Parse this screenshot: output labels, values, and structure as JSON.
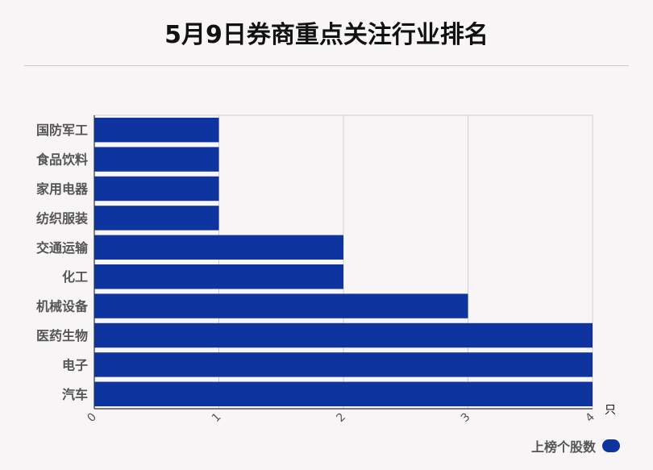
{
  "title": "5月9日券商重点关注行业排名",
  "chart_data": {
    "type": "bar",
    "orientation": "horizontal",
    "categories": [
      "国防军工",
      "食品饮料",
      "家用电器",
      "纺织服装",
      "交通运输",
      "化工",
      "机械设备",
      "医药生物",
      "电子",
      "汽车"
    ],
    "series": [
      {
        "name": "上榜个股数",
        "values": [
          1,
          1,
          1,
          1,
          2,
          2,
          3,
          4,
          4,
          4
        ]
      }
    ],
    "xlim": [
      0,
      4
    ],
    "xticks": [
      "0",
      "1",
      "2",
      "3",
      "4"
    ],
    "x_unit": "只",
    "grid": true,
    "legend_position": "bottom-right",
    "bar_color": "#0e349f"
  }
}
